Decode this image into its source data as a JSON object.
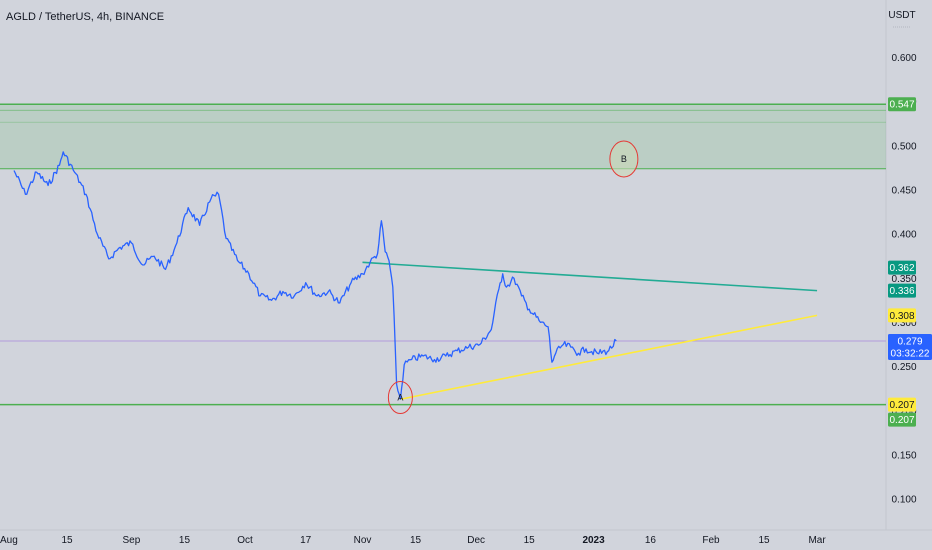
{
  "header": {
    "title": "AGLD / TetherUS, 4h, BINANCE"
  },
  "chart_data": {
    "type": "line",
    "title": "AGLD / TetherUS, 4h, BINANCE",
    "unit": "USDT",
    "ylim": [
      0.065,
      0.665
    ],
    "y_ticks": [
      "0.600",
      "0.550",
      "0.500",
      "0.450",
      "0.400",
      "0.350",
      "0.300",
      "0.250",
      "0.200",
      "0.150",
      "0.100"
    ],
    "x_ticks": [
      "Aug",
      "15",
      "Sep",
      "15",
      "Oct",
      "17",
      "Nov",
      "15",
      "Dec",
      "15",
      "2023",
      "16",
      "Feb",
      "15",
      "Mar"
    ],
    "series": [
      {
        "color": "#2962ff",
        "points": [
          [
            "Aug 1",
            0.472
          ],
          [
            "Aug 4",
            0.445
          ],
          [
            "Aug 7",
            0.47
          ],
          [
            "Aug 10",
            0.455
          ],
          [
            "Aug 13",
            0.478
          ],
          [
            "Aug 14",
            0.493
          ],
          [
            "Aug 17",
            0.47
          ],
          [
            "Aug 20",
            0.445
          ],
          [
            "Aug 23",
            0.4
          ],
          [
            "Aug 26",
            0.372
          ],
          [
            "Aug 29",
            0.385
          ],
          [
            "Sep 1",
            0.39
          ],
          [
            "Sep 4",
            0.365
          ],
          [
            "Sep 7",
            0.375
          ],
          [
            "Sep 10",
            0.36
          ],
          [
            "Sep 13",
            0.39
          ],
          [
            "Sep 16",
            0.43
          ],
          [
            "Sep 19",
            0.41
          ],
          [
            "Sep 22",
            0.44
          ],
          [
            "Sep 24",
            0.445
          ],
          [
            "Sep 26",
            0.395
          ],
          [
            "Sep 29",
            0.37
          ],
          [
            "Oct 2",
            0.355
          ],
          [
            "Oct 5",
            0.33
          ],
          [
            "Oct 8",
            0.325
          ],
          [
            "Oct 11",
            0.335
          ],
          [
            "Oct 14",
            0.33
          ],
          [
            "Oct 17",
            0.345
          ],
          [
            "Oct 20",
            0.33
          ],
          [
            "Oct 23",
            0.335
          ],
          [
            "Oct 26",
            0.322
          ],
          [
            "Oct 29",
            0.345
          ],
          [
            "Nov 1",
            0.355
          ],
          [
            "Nov 3",
            0.368
          ],
          [
            "Nov 5",
            0.378
          ],
          [
            "Nov 6",
            0.415
          ],
          [
            "Nov 7",
            0.38
          ],
          [
            "Nov 8",
            0.37
          ],
          [
            "Nov 9",
            0.34
          ],
          [
            "Nov 10",
            0.23
          ],
          [
            "Nov 11",
            0.213
          ],
          [
            "Nov 12",
            0.252
          ],
          [
            "Nov 14",
            0.258
          ],
          [
            "Nov 17",
            0.262
          ],
          [
            "Nov 20",
            0.258
          ],
          [
            "Nov 23",
            0.262
          ],
          [
            "Nov 26",
            0.268
          ],
          [
            "Nov 29",
            0.272
          ],
          [
            "Dec 2",
            0.275
          ],
          [
            "Dec 5",
            0.292
          ],
          [
            "Dec 7",
            0.338
          ],
          [
            "Dec 8",
            0.355
          ],
          [
            "Dec 9",
            0.34
          ],
          [
            "Dec 11",
            0.35
          ],
          [
            "Dec 13",
            0.33
          ],
          [
            "Dec 15",
            0.315
          ],
          [
            "Dec 18",
            0.3
          ],
          [
            "Dec 20",
            0.295
          ],
          [
            "Dec 21",
            0.255
          ],
          [
            "Dec 22",
            0.265
          ],
          [
            "Dec 24",
            0.275
          ],
          [
            "Dec 26",
            0.272
          ],
          [
            "Dec 28",
            0.265
          ],
          [
            "Dec 30",
            0.27
          ],
          [
            "Jan 2",
            0.265
          ],
          [
            "Jan 5",
            0.268
          ],
          [
            "Jan 7",
            0.279
          ]
        ]
      }
    ],
    "levels": [
      {
        "value": 0.547,
        "color": "#4caf50",
        "label": "0.547"
      },
      {
        "value": 0.207,
        "color": "#4caf50",
        "label": "0.207"
      }
    ],
    "zone": {
      "from": 0.474,
      "to": 0.547,
      "color": "#4caf50"
    },
    "trendlines": [
      {
        "color": "#22ab94",
        "from": [
          "Nov 1",
          0.368
        ],
        "to": [
          "Mar 1",
          0.336
        ]
      },
      {
        "color": "#ffeb3b",
        "from": [
          "Nov 11",
          0.213
        ],
        "to": [
          "Mar 1",
          0.308
        ]
      }
    ],
    "price_lines": [
      {
        "value": 0.279,
        "color": "#b39ddb"
      }
    ],
    "annotations": [
      {
        "label": "A",
        "at": [
          "Nov 11",
          0.215
        ]
      },
      {
        "label": "B",
        "at": [
          "Jan 9",
          0.485
        ]
      }
    ],
    "price_tags": [
      {
        "value": 0.547,
        "text": "0.547",
        "bg": "#4caf50",
        "fg": "#ffffff"
      },
      {
        "value": 0.362,
        "text": "0.362",
        "bg": "#089981",
        "fg": "#ffffff"
      },
      {
        "value": 0.336,
        "text": "0.336",
        "bg": "#089981",
        "fg": "#ffffff"
      },
      {
        "value": 0.308,
        "text": "0.308",
        "bg": "#ffeb3b",
        "fg": "#131722"
      },
      {
        "value": 0.279,
        "text": "0.279",
        "sub": "03:32:22",
        "bg": "#2962ff",
        "fg": "#ffffff"
      },
      {
        "value": 0.207,
        "text": "0.207",
        "bg": "#ffeb3b",
        "fg": "#131722"
      },
      {
        "value": 0.207,
        "text": "0.207",
        "bg": "#4caf50",
        "fg": "#ffffff",
        "below": true
      }
    ],
    "partial_ticks": [
      "0.350",
      "0.300",
      "0.250"
    ]
  }
}
